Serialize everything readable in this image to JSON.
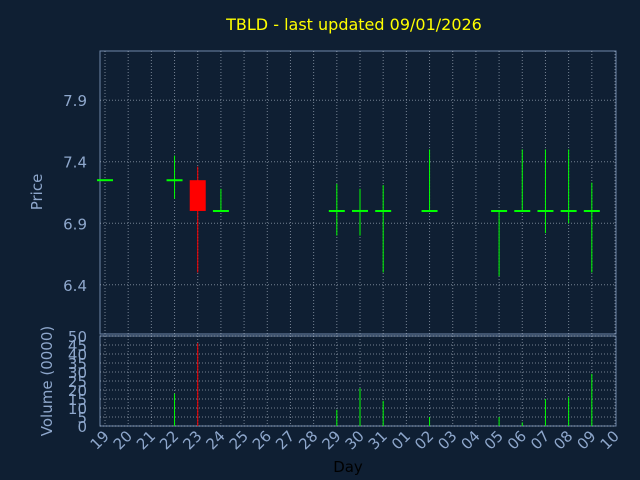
{
  "chart_data": {
    "type": "candlestick",
    "title": "TBLD - last updated 09/01/2026",
    "xlabel": "Day",
    "price_ylabel": "Price",
    "volume_ylabel": "Volume (0000)",
    "x_ticks": [
      "19",
      "20",
      "21",
      "22",
      "23",
      "24",
      "25",
      "26",
      "27",
      "28",
      "29",
      "30",
      "31",
      "01",
      "02",
      "03",
      "04",
      "05",
      "06",
      "07",
      "08",
      "09",
      "10"
    ],
    "price_yticks": [
      "6.4",
      "6.9",
      "7.4",
      "7.9"
    ],
    "price_ylim": [
      6.0,
      8.3
    ],
    "volume_yticks": [
      "0",
      "5",
      "10",
      "15",
      "20",
      "25",
      "30",
      "35",
      "40",
      "45",
      "50"
    ],
    "volume_ylim": [
      0,
      50
    ],
    "candles": [
      {
        "day": 0,
        "open": 7.25,
        "high": 7.25,
        "low": 7.25,
        "close": 7.25,
        "volume": 0
      },
      {
        "day": 3,
        "open": 7.25,
        "high": 7.45,
        "low": 7.1,
        "close": 7.25,
        "volume": 18
      },
      {
        "day": 4,
        "open": 7.25,
        "high": 7.36,
        "low": 6.5,
        "close": 7.0,
        "volume": 46
      },
      {
        "day": 5,
        "open": 7.0,
        "high": 7.18,
        "low": 7.0,
        "close": 7.0,
        "volume": 0
      },
      {
        "day": 10,
        "open": 7.0,
        "high": 7.22,
        "low": 6.8,
        "close": 7.0,
        "volume": 9
      },
      {
        "day": 11,
        "open": 7.0,
        "high": 7.18,
        "low": 6.8,
        "close": 7.0,
        "volume": 21
      },
      {
        "day": 12,
        "open": 7.0,
        "high": 7.21,
        "low": 6.5,
        "close": 7.0,
        "volume": 14
      },
      {
        "day": 14,
        "open": 7.0,
        "high": 7.5,
        "low": 7.0,
        "close": 7.0,
        "volume": 5
      },
      {
        "day": 17,
        "open": 7.0,
        "high": 7.0,
        "low": 6.47,
        "close": 7.0,
        "volume": 5
      },
      {
        "day": 18,
        "open": 7.0,
        "high": 7.5,
        "low": 7.0,
        "close": 7.0,
        "volume": 2
      },
      {
        "day": 19,
        "open": 7.0,
        "high": 7.5,
        "low": 6.82,
        "close": 7.0,
        "volume": 15
      },
      {
        "day": 20,
        "open": 7.0,
        "high": 7.5,
        "low": 6.9,
        "close": 7.0,
        "volume": 16
      },
      {
        "day": 21,
        "open": 7.0,
        "high": 7.23,
        "low": 6.5,
        "close": 7.0,
        "volume": 29
      }
    ],
    "colors": {
      "background": "#0f1f33",
      "plot_border": "#6f87a8",
      "grid": "#c8d2e0",
      "axis_text": "#8ea7cc",
      "title": "#ffff00",
      "up": "#00ff00",
      "down": "#ff0000"
    }
  }
}
